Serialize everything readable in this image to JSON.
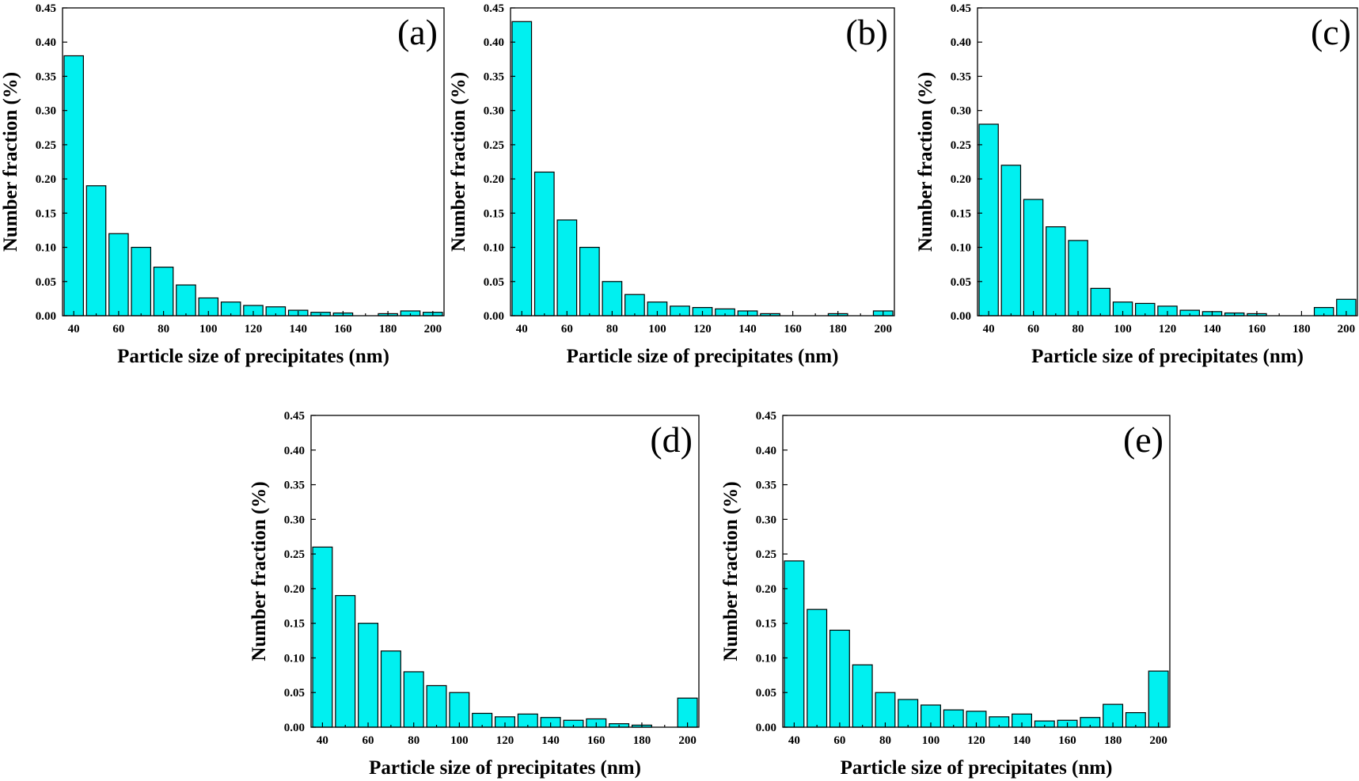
{
  "chart_data": [
    {
      "type": "bar",
      "panel_label": "(a)",
      "xlabel": "Particle size of precipitates (nm)",
      "ylabel": "Number fraction (%)",
      "x": [
        40,
        50,
        60,
        70,
        80,
        90,
        100,
        110,
        120,
        130,
        140,
        150,
        160,
        170,
        180,
        190,
        200
      ],
      "values": [
        0.38,
        0.19,
        0.12,
        0.1,
        0.071,
        0.045,
        0.026,
        0.02,
        0.015,
        0.013,
        0.008,
        0.005,
        0.004,
        0.0,
        0.003,
        0.007,
        0.005
      ],
      "xticks": [
        40,
        60,
        80,
        100,
        120,
        140,
        160,
        180,
        200
      ],
      "yticks": [
        "0.00",
        "0.05",
        "0.10",
        "0.15",
        "0.20",
        "0.25",
        "0.30",
        "0.35",
        "0.40",
        "0.45"
      ],
      "ylim": [
        0,
        0.45
      ]
    },
    {
      "type": "bar",
      "panel_label": "(b)",
      "xlabel": "Particle size of precipitates (nm)",
      "ylabel": "Number fraction (%)",
      "x": [
        40,
        50,
        60,
        70,
        80,
        90,
        100,
        110,
        120,
        130,
        140,
        150,
        160,
        170,
        180,
        190,
        200
      ],
      "values": [
        0.43,
        0.21,
        0.14,
        0.1,
        0.05,
        0.031,
        0.02,
        0.014,
        0.012,
        0.01,
        0.007,
        0.003,
        0.0,
        0.0,
        0.003,
        0.0,
        0.007
      ],
      "xticks": [
        40,
        60,
        80,
        100,
        120,
        140,
        160,
        180,
        200
      ],
      "yticks": [
        "0.00",
        "0.05",
        "0.10",
        "0.15",
        "0.20",
        "0.25",
        "0.30",
        "0.35",
        "0.40",
        "0.45"
      ],
      "ylim": [
        0,
        0.45
      ]
    },
    {
      "type": "bar",
      "panel_label": "(c)",
      "xlabel": "Particle size of precipitates (nm)",
      "ylabel": "Number fraction (%)",
      "x": [
        40,
        50,
        60,
        70,
        80,
        90,
        100,
        110,
        120,
        130,
        140,
        150,
        160,
        170,
        180,
        190,
        200
      ],
      "values": [
        0.28,
        0.22,
        0.17,
        0.13,
        0.11,
        0.04,
        0.02,
        0.018,
        0.014,
        0.008,
        0.006,
        0.004,
        0.003,
        0.0,
        0.0,
        0.012,
        0.024
      ],
      "xticks": [
        40,
        60,
        80,
        100,
        120,
        140,
        160,
        180,
        200
      ],
      "yticks": [
        "0.00",
        "0.05",
        "0.10",
        "0.15",
        "0.20",
        "0.25",
        "0.30",
        "0.35",
        "0.40",
        "0.45"
      ],
      "ylim": [
        0,
        0.45
      ]
    },
    {
      "type": "bar",
      "panel_label": "(d)",
      "xlabel": "Particle size of precipitates (nm)",
      "ylabel": "Number fraction (%)",
      "x": [
        40,
        50,
        60,
        70,
        80,
        90,
        100,
        110,
        120,
        130,
        140,
        150,
        160,
        170,
        180,
        190,
        200
      ],
      "values": [
        0.26,
        0.19,
        0.15,
        0.11,
        0.08,
        0.06,
        0.05,
        0.02,
        0.015,
        0.019,
        0.014,
        0.01,
        0.012,
        0.005,
        0.003,
        0.0,
        0.042
      ],
      "xticks": [
        40,
        60,
        80,
        100,
        120,
        140,
        160,
        180,
        200
      ],
      "yticks": [
        "0.00",
        "0.05",
        "0.10",
        "0.15",
        "0.20",
        "0.25",
        "0.30",
        "0.35",
        "0.40",
        "0.45"
      ],
      "ylim": [
        0,
        0.45
      ]
    },
    {
      "type": "bar",
      "panel_label": "(e)",
      "xlabel": "Particle size of precipitates (nm)",
      "ylabel": "Number fraction (%)",
      "x": [
        40,
        50,
        60,
        70,
        80,
        90,
        100,
        110,
        120,
        130,
        140,
        150,
        160,
        170,
        180,
        190,
        200
      ],
      "values": [
        0.24,
        0.17,
        0.14,
        0.09,
        0.05,
        0.04,
        0.032,
        0.025,
        0.023,
        0.015,
        0.019,
        0.009,
        0.01,
        0.014,
        0.033,
        0.021,
        0.081
      ],
      "xticks": [
        40,
        60,
        80,
        100,
        120,
        140,
        160,
        180,
        200
      ],
      "yticks": [
        "0.00",
        "0.05",
        "0.10",
        "0.15",
        "0.20",
        "0.25",
        "0.30",
        "0.35",
        "0.40",
        "0.45"
      ],
      "ylim": [
        0,
        0.45
      ]
    }
  ]
}
